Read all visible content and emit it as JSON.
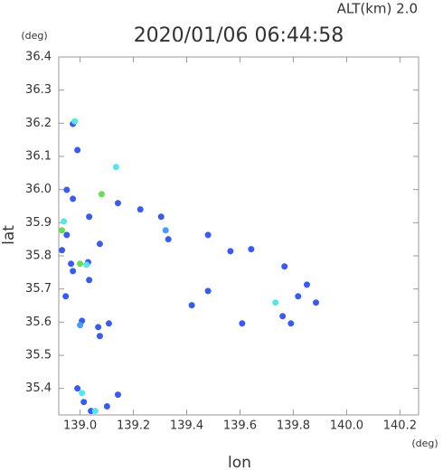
{
  "chart_data": {
    "type": "scatter",
    "title": "2020/01/06 06:44:58",
    "subtitle": "ALT(km) 2.0",
    "x_label": "lon",
    "x_unit": "(deg)",
    "y_label": "lat",
    "y_unit": "(deg)",
    "xlim": [
      138.92,
      140.27
    ],
    "ylim": [
      35.32,
      36.4
    ],
    "xticks": [
      {
        "value": 139,
        "label": "139.0"
      },
      139.2,
      139.4,
      139.6,
      139.8,
      {
        "value": 140,
        "label": "140.0"
      },
      140.2
    ],
    "yticks": [
      35.4,
      35.5,
      35.6,
      35.7,
      35.8,
      35.9,
      {
        "value": 36,
        "label": "36.0"
      },
      36.1,
      36.2,
      36.3,
      36.4
    ],
    "series": [
      {
        "color": "#3a5bef",
        "x": [
          138.973,
          138.99,
          138.95,
          138.973,
          139.034,
          138.95,
          138.932,
          138.966,
          138.973,
          139.03,
          139.074,
          139.034,
          138.946,
          139.007,
          139.068,
          139.108,
          139.074,
          139.142,
          139.226,
          139.304,
          139.48,
          139.564,
          139.642,
          139.48,
          139.419,
          139.608,
          139.767,
          139.818,
          139.851,
          139.885,
          139.791,
          139.76,
          138.99,
          139.014,
          139.142,
          139.041,
          139.101,
          139.331
        ],
        "values": [
          36.198,
          36.119,
          35.999,
          35.972,
          35.918,
          35.863,
          35.817,
          35.776,
          35.754,
          35.781,
          35.836,
          35.727,
          35.678,
          35.604,
          35.585,
          35.596,
          35.558,
          35.959,
          35.94,
          35.918,
          35.863,
          35.814,
          35.82,
          35.694,
          35.651,
          35.596,
          35.768,
          35.678,
          35.713,
          35.659,
          35.596,
          35.618,
          35.4,
          35.359,
          35.381,
          35.332,
          35.346,
          35.85
        ]
      },
      {
        "color": "#4b9cf7",
        "x": [
          139.0,
          139.321
        ],
        "values": [
          35.591,
          35.877
        ]
      },
      {
        "color": "#55e6e8",
        "x": [
          138.98,
          139.135,
          138.939,
          139.024,
          139.007,
          139.057,
          139.733
        ],
        "values": [
          36.206,
          36.068,
          35.904,
          35.773,
          35.386,
          35.332,
          35.659
        ]
      },
      {
        "color": "#66dd55",
        "x": [
          138.932,
          139.081,
          139.0
        ],
        "values": [
          35.877,
          35.986,
          35.776
        ]
      }
    ]
  }
}
